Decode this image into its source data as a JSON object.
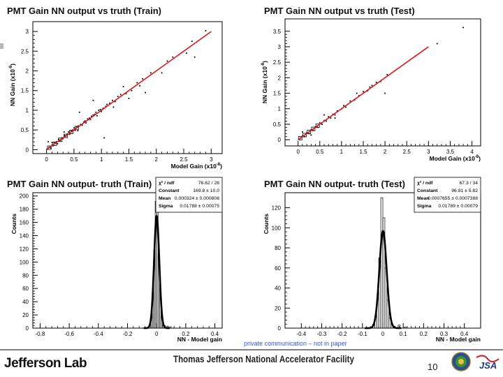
{
  "chart_data": [
    {
      "type": "scatter",
      "title": "PMT Gain NN output vs truth (Train)",
      "xlabel": "Model Gain (x10",
      "xexp": "-8",
      "ylabel": "NN Gain (x10",
      "yexp": "-8",
      "xlim": [
        -0.25,
        3.2
      ],
      "ylim": [
        -0.1,
        3.25
      ],
      "xticks": [
        0,
        0.5,
        1,
        1.5,
        2,
        2.5,
        3
      ],
      "xtick_labels": [
        "0",
        "0.5",
        "1",
        "1.5",
        "2",
        "2.5",
        "3"
      ],
      "yticks": [
        0,
        0.5,
        1,
        1.5,
        2,
        2.5,
        3
      ],
      "ytick_labels": [
        "0",
        "0.5",
        "1",
        "1.5",
        "2",
        "2.5",
        "3"
      ],
      "fit_line": [
        [
          0.0,
          0.0
        ],
        [
          3.0,
          3.0
        ]
      ],
      "points": [
        [
          0.02,
          0.03
        ],
        [
          0.05,
          0.06
        ],
        [
          0.08,
          0.04
        ],
        [
          0.1,
          0.12
        ],
        [
          0.12,
          0.1
        ],
        [
          0.15,
          0.17
        ],
        [
          0.18,
          0.2
        ],
        [
          0.2,
          0.15
        ],
        [
          0.22,
          0.26
        ],
        [
          0.25,
          0.23
        ],
        [
          0.28,
          0.3
        ],
        [
          0.3,
          0.28
        ],
        [
          0.33,
          0.36
        ],
        [
          0.35,
          0.34
        ],
        [
          0.38,
          0.4
        ],
        [
          0.4,
          0.45
        ],
        [
          0.42,
          0.39
        ],
        [
          0.45,
          0.47
        ],
        [
          0.48,
          0.5
        ],
        [
          0.5,
          0.55
        ],
        [
          0.52,
          0.49
        ],
        [
          0.55,
          0.57
        ],
        [
          0.58,
          0.6
        ],
        [
          0.6,
          0.95
        ],
        [
          0.62,
          0.64
        ],
        [
          0.65,
          0.62
        ],
        [
          0.68,
          0.7
        ],
        [
          0.7,
          0.73
        ],
        [
          0.72,
          0.68
        ],
        [
          0.75,
          0.78
        ],
        [
          0.78,
          0.8
        ],
        [
          0.8,
          0.76
        ],
        [
          0.82,
          0.85
        ],
        [
          0.85,
          0.88
        ],
        [
          0.88,
          0.9
        ],
        [
          0.9,
          0.95
        ],
        [
          0.92,
          0.86
        ],
        [
          0.95,
          1.0
        ],
        [
          0.98,
          1.02
        ],
        [
          1.0,
          0.97
        ],
        [
          1.03,
          1.05
        ],
        [
          1.05,
          0.3
        ],
        [
          1.08,
          1.1
        ],
        [
          1.1,
          1.15
        ],
        [
          1.15,
          1.18
        ],
        [
          1.2,
          1.25
        ],
        [
          1.25,
          1.22
        ],
        [
          1.3,
          1.35
        ],
        [
          1.35,
          1.4
        ],
        [
          1.4,
          1.6
        ],
        [
          1.45,
          1.42
        ],
        [
          1.5,
          1.3
        ],
        [
          1.55,
          1.5
        ],
        [
          1.65,
          1.7
        ],
        [
          1.7,
          1.62
        ],
        [
          1.75,
          1.8
        ],
        [
          1.8,
          1.45
        ],
        [
          1.9,
          1.95
        ],
        [
          2.1,
          1.95
        ],
        [
          2.2,
          2.25
        ],
        [
          2.3,
          2.35
        ],
        [
          2.55,
          2.45
        ],
        [
          2.65,
          2.75
        ],
        [
          2.7,
          2.35
        ],
        [
          2.9,
          3.02
        ],
        [
          0.03,
          0.2
        ],
        [
          0.1,
          0.18
        ],
        [
          0.32,
          0.45
        ],
        [
          0.57,
          0.48
        ],
        [
          0.85,
          1.25
        ],
        [
          1.22,
          1.08
        ]
      ],
      "boxes": [
        0.05,
        0.15,
        0.25,
        0.35,
        0.45,
        0.55
      ]
    },
    {
      "type": "scatter",
      "title": "PMT Gain NN output vs truth (Test)",
      "xlabel": "Model Gain (x10",
      "xexp": "-8",
      "ylabel": "NN Gain (x10",
      "yexp": "-8",
      "xlim": [
        -0.3,
        4.2
      ],
      "ylim": [
        -0.2,
        3.9
      ],
      "xticks": [
        0,
        0.5,
        1,
        1.5,
        2,
        2.5,
        3,
        3.5,
        4
      ],
      "xtick_labels": [
        "0",
        "0.5",
        "1",
        "1.5",
        "2",
        "2.5",
        "3",
        "3.5",
        "4"
      ],
      "yticks": [
        0,
        0.5,
        1,
        1.5,
        2,
        2.5,
        3,
        3.5
      ],
      "ytick_labels": [
        "0",
        "0.5",
        "1",
        "1.5",
        "2",
        "2.5",
        "3",
        "3.5"
      ],
      "fit_line": [
        [
          0.0,
          0.0
        ],
        [
          3.0,
          3.0
        ]
      ],
      "points": [
        [
          0.05,
          0.04
        ],
        [
          0.1,
          0.12
        ],
        [
          0.15,
          0.1
        ],
        [
          0.2,
          0.22
        ],
        [
          0.25,
          0.2
        ],
        [
          0.3,
          0.32
        ],
        [
          0.35,
          0.3
        ],
        [
          0.4,
          0.42
        ],
        [
          0.45,
          0.4
        ],
        [
          0.5,
          0.55
        ],
        [
          0.55,
          0.5
        ],
        [
          0.6,
          0.62
        ],
        [
          0.65,
          0.6
        ],
        [
          0.7,
          0.74
        ],
        [
          0.75,
          0.7
        ],
        [
          0.8,
          0.82
        ],
        [
          0.85,
          0.8
        ],
        [
          0.9,
          0.93
        ],
        [
          1.0,
          1.0
        ],
        [
          1.05,
          1.1
        ],
        [
          1.1,
          1.05
        ],
        [
          1.2,
          1.25
        ],
        [
          1.3,
          1.28
        ],
        [
          1.4,
          1.42
        ],
        [
          1.5,
          1.55
        ],
        [
          1.6,
          1.58
        ],
        [
          1.7,
          1.75
        ],
        [
          1.8,
          1.85
        ],
        [
          1.9,
          1.88
        ],
        [
          2.0,
          1.5
        ],
        [
          2.05,
          2.1
        ],
        [
          2.7,
          2.7
        ],
        [
          3.2,
          3.1
        ],
        [
          3.8,
          3.62
        ],
        [
          0.1,
          0.25
        ],
        [
          0.3,
          0.15
        ],
        [
          0.6,
          0.8
        ],
        [
          0.85,
          0.7
        ],
        [
          1.35,
          1.5
        ],
        [
          1.65,
          1.7
        ]
      ],
      "boxes": [
        0.05,
        0.15,
        0.25,
        0.35,
        0.45
      ]
    },
    {
      "type": "histogram",
      "title": "PMT Gain NN output- truth (Train)",
      "xlabel": "NN - Model gain",
      "ylabel": "Counts",
      "xlim": [
        -0.85,
        0.45
      ],
      "ylim": [
        0,
        205
      ],
      "xticks": [
        -0.8,
        -0.6,
        -0.4,
        -0.2,
        0,
        0.2,
        0.4
      ],
      "xtick_labels": [
        "-0.8",
        "-0.6",
        "-0.4",
        "-0.2",
        "0",
        "0.2",
        "0.4"
      ],
      "yticks": [
        0,
        20,
        40,
        60,
        80,
        100,
        120,
        140,
        160,
        180,
        200
      ],
      "ytick_labels": [
        "0",
        "20",
        "40",
        "60",
        "80",
        "100",
        "120",
        "140",
        "160",
        "180",
        "200"
      ],
      "gaussian": {
        "constant": 169.8,
        "mean": 0.000324,
        "sigma": 0.01788
      },
      "hist_centers": [
        -0.055,
        -0.045,
        -0.035,
        -0.025,
        -0.015,
        -0.005,
        0.005,
        0.015,
        0.025,
        0.035,
        0.045,
        0.055,
        0.075,
        0.095
      ],
      "hist_counts": [
        2,
        6,
        22,
        55,
        118,
        192,
        178,
        110,
        50,
        18,
        5,
        4,
        3,
        2
      ],
      "stats": [
        {
          "label": "χ² / ndf",
          "value": "76.62 / 28"
        },
        {
          "label": "Constant",
          "value": "169.8 ± 10.0"
        },
        {
          "label": "Mean",
          "value": "0.000324 ± 0.000808"
        },
        {
          "label": "Sigma",
          "value": "0.01788 ± 0.00075"
        }
      ]
    },
    {
      "type": "histogram",
      "title": "PMT Gain NN output- truth (Test)",
      "xlabel": "NN - Model gain",
      "ylabel": "Counts",
      "xlim": [
        -0.48,
        0.48
      ],
      "ylim": [
        0,
        135
      ],
      "xticks": [
        -0.4,
        -0.3,
        -0.2,
        -0.1,
        0,
        0.1,
        0.2,
        0.3,
        0.4
      ],
      "xtick_labels": [
        "-0.4",
        "-0.3",
        "-0.2",
        "-0.1",
        "0",
        "0.1",
        "0.2",
        "0.3",
        "0.4"
      ],
      "yticks": [
        0,
        20,
        40,
        60,
        80,
        100,
        120
      ],
      "ytick_labels": [
        "0",
        "20",
        "40",
        "60",
        "80",
        "100",
        "120"
      ],
      "gaussian": {
        "constant": 96.81,
        "mean": 0.0007655,
        "sigma": 0.01789
      },
      "hist_centers": [
        -0.055,
        -0.045,
        -0.035,
        -0.025,
        -0.015,
        -0.005,
        0.005,
        0.015,
        0.025,
        0.035,
        0.045,
        0.055,
        0.08,
        0.11
      ],
      "hist_counts": [
        1,
        4,
        12,
        30,
        70,
        130,
        110,
        60,
        28,
        10,
        4,
        2,
        3,
        1
      ],
      "stats": [
        {
          "label": "χ² / ndf",
          "value": "67.3 / 34"
        },
        {
          "label": "Constant",
          "value": "96.81 ± 5.82"
        },
        {
          "label": "Mean",
          "value": "0.0007655 ± 0.0007388"
        },
        {
          "label": "Sigma",
          "value": "0.01789 ± 0.00079"
        }
      ]
    }
  ],
  "footer": {
    "caption": "private communication – not in paper",
    "brand": "Jefferson Lab",
    "facility": "Thomas Jefferson National Accelerator Facility",
    "page_number": "10",
    "logo_right": "JSA"
  },
  "colors": {
    "fit": "#e0151a",
    "gaussian": "#000000",
    "marker": "#000000",
    "caption": "#3b56c8"
  }
}
